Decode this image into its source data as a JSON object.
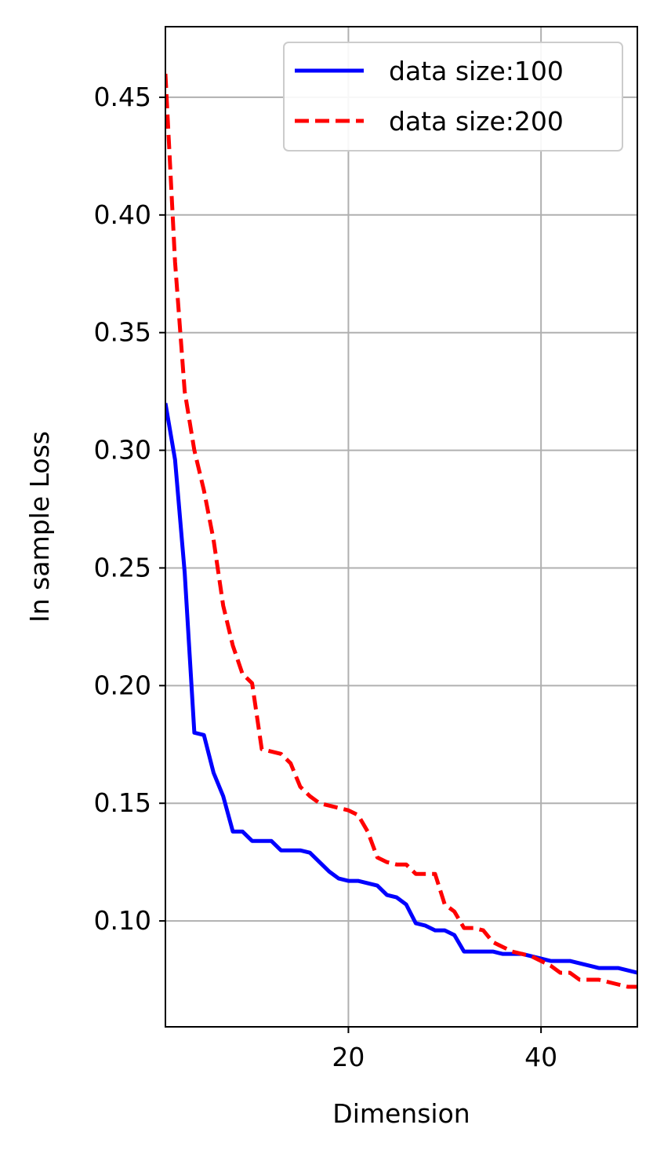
{
  "chart_data": {
    "type": "line",
    "title": "",
    "xlabel": "Dimension",
    "ylabel": "In sample Loss",
    "xlim": [
      1,
      50
    ],
    "ylim": [
      0.055,
      0.48
    ],
    "xticks": [
      20,
      40
    ],
    "xtick_labels": [
      "20",
      "40"
    ],
    "yticks": [
      0.1,
      0.15,
      0.2,
      0.25,
      0.3,
      0.35,
      0.4,
      0.45
    ],
    "ytick_labels": [
      "0.10",
      "0.15",
      "0.20",
      "0.25",
      "0.30",
      "0.35",
      "0.40",
      "0.45"
    ],
    "grid": true,
    "legend_position": "top-right",
    "x": [
      1,
      2,
      3,
      4,
      5,
      6,
      7,
      8,
      9,
      10,
      11,
      12,
      13,
      14,
      15,
      16,
      17,
      18,
      19,
      20,
      21,
      22,
      23,
      24,
      25,
      26,
      27,
      28,
      29,
      30,
      31,
      32,
      33,
      34,
      35,
      36,
      37,
      38,
      39,
      40,
      41,
      42,
      43,
      44,
      45,
      46,
      47,
      48,
      49,
      50
    ],
    "series": [
      {
        "name": "data size:100",
        "color": "#0000ff",
        "style": "solid",
        "values": [
          0.32,
          0.296,
          0.248,
          0.18,
          0.179,
          0.163,
          0.153,
          0.138,
          0.138,
          0.134,
          0.134,
          0.134,
          0.13,
          0.13,
          0.13,
          0.129,
          0.125,
          0.121,
          0.118,
          0.117,
          0.117,
          0.116,
          0.115,
          0.111,
          0.11,
          0.107,
          0.099,
          0.098,
          0.096,
          0.096,
          0.094,
          0.087,
          0.087,
          0.087,
          0.087,
          0.086,
          0.086,
          0.086,
          0.085,
          0.084,
          0.083,
          0.083,
          0.083,
          0.082,
          0.081,
          0.08,
          0.08,
          0.08,
          0.079,
          0.078
        ]
      },
      {
        "name": "data size:200",
        "color": "#ff0000",
        "style": "dashed",
        "values": [
          0.46,
          0.38,
          0.325,
          0.3,
          0.283,
          0.262,
          0.234,
          0.217,
          0.205,
          0.201,
          0.173,
          0.172,
          0.171,
          0.167,
          0.157,
          0.153,
          0.15,
          0.149,
          0.148,
          0.147,
          0.145,
          0.138,
          0.127,
          0.125,
          0.124,
          0.124,
          0.12,
          0.12,
          0.12,
          0.107,
          0.104,
          0.097,
          0.097,
          0.096,
          0.091,
          0.089,
          0.087,
          0.086,
          0.085,
          0.083,
          0.081,
          0.078,
          0.078,
          0.075,
          0.075,
          0.075,
          0.074,
          0.073,
          0.072,
          0.072
        ]
      }
    ]
  }
}
